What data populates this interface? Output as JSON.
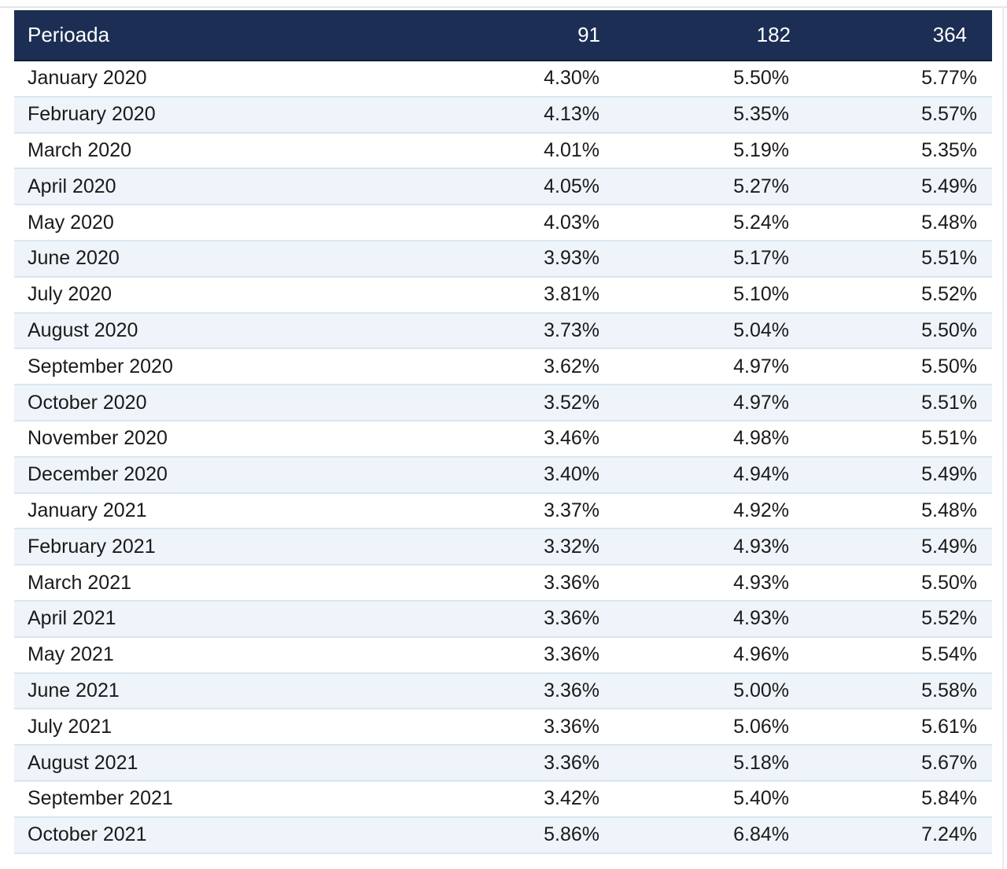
{
  "table": {
    "headers": [
      "Perioada",
      "91",
      "182",
      "364"
    ],
    "rows": [
      [
        "January 2020",
        "4.30%",
        "5.50%",
        "5.77%"
      ],
      [
        "February 2020",
        "4.13%",
        "5.35%",
        "5.57%"
      ],
      [
        "March 2020",
        "4.01%",
        "5.19%",
        "5.35%"
      ],
      [
        "April 2020",
        "4.05%",
        "5.27%",
        "5.49%"
      ],
      [
        "May 2020",
        "4.03%",
        "5.24%",
        "5.48%"
      ],
      [
        "June 2020",
        "3.93%",
        "5.17%",
        "5.51%"
      ],
      [
        "July 2020",
        "3.81%",
        "5.10%",
        "5.52%"
      ],
      [
        "August 2020",
        "3.73%",
        "5.04%",
        "5.50%"
      ],
      [
        "September 2020",
        "3.62%",
        "4.97%",
        "5.50%"
      ],
      [
        "October 2020",
        "3.52%",
        "4.97%",
        "5.51%"
      ],
      [
        "November 2020",
        "3.46%",
        "4.98%",
        "5.51%"
      ],
      [
        "December 2020",
        "3.40%",
        "4.94%",
        "5.49%"
      ],
      [
        "January 2021",
        "3.37%",
        "4.92%",
        "5.48%"
      ],
      [
        "February 2021",
        "3.32%",
        "4.93%",
        "5.49%"
      ],
      [
        "March 2021",
        "3.36%",
        "4.93%",
        "5.50%"
      ],
      [
        "April 2021",
        "3.36%",
        "4.93%",
        "5.52%"
      ],
      [
        "May 2021",
        "3.36%",
        "4.96%",
        "5.54%"
      ],
      [
        "June 2021",
        "3.36%",
        "5.00%",
        "5.58%"
      ],
      [
        "July 2021",
        "3.36%",
        "5.06%",
        "5.61%"
      ],
      [
        "August 2021",
        "3.36%",
        "5.18%",
        "5.67%"
      ],
      [
        "September 2021",
        "3.42%",
        "5.40%",
        "5.84%"
      ],
      [
        "October 2021",
        "5.86%",
        "6.84%",
        "7.24%"
      ]
    ]
  },
  "colors": {
    "header_bg": "#1c2e54",
    "header_text": "#ffffff",
    "row_alt_bg": "#eef4f9",
    "row_divider": "#d8e6f1"
  }
}
